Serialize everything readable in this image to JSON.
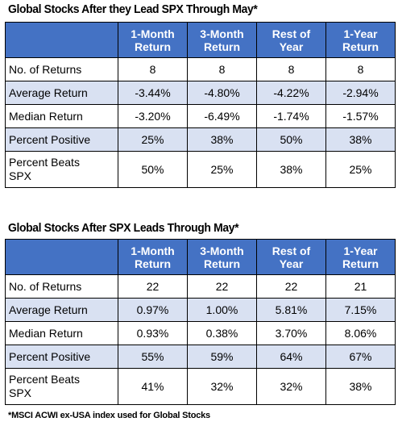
{
  "chart_data": [
    {
      "type": "table",
      "title": "Global Stocks After they Lead SPX Through May*",
      "columns": [
        "1-Month Return",
        "3-Month Return",
        "Rest of Year",
        "1-Year Return"
      ],
      "header_lines": [
        [
          "1-Month",
          "Return"
        ],
        [
          "3-Month",
          "Return"
        ],
        [
          "Rest of",
          "Year"
        ],
        [
          "1-Year",
          "Return"
        ]
      ],
      "rows": [
        {
          "label": "No. of Returns",
          "label_lines": [
            "No. of Returns"
          ],
          "values": [
            "8",
            "8",
            "8",
            "8"
          ]
        },
        {
          "label": "Average Return",
          "label_lines": [
            "Average Return"
          ],
          "values": [
            "-3.44%",
            "-4.80%",
            "-4.22%",
            "-2.94%"
          ]
        },
        {
          "label": "Median Return",
          "label_lines": [
            "Median Return"
          ],
          "values": [
            "-3.20%",
            "-6.49%",
            "-1.74%",
            "-1.57%"
          ]
        },
        {
          "label": "Percent Positive",
          "label_lines": [
            "Percent Positive"
          ],
          "values": [
            "25%",
            "38%",
            "50%",
            "38%"
          ]
        },
        {
          "label": "Percent Beats SPX",
          "label_lines": [
            "Percent Beats",
            "SPX"
          ],
          "values": [
            "50%",
            "25%",
            "38%",
            "25%"
          ]
        }
      ]
    },
    {
      "type": "table",
      "title": "Global Stocks After SPX Leads Through May*",
      "columns": [
        "1-Month Return",
        "3-Month Return",
        "Rest of Year",
        "1-Year Return"
      ],
      "header_lines": [
        [
          "1-Month",
          "Return"
        ],
        [
          "3-Month",
          "Return"
        ],
        [
          "Rest of",
          "Year"
        ],
        [
          "1-Year",
          "Return"
        ]
      ],
      "rows": [
        {
          "label": "No. of Returns",
          "label_lines": [
            "No. of Returns"
          ],
          "values": [
            "22",
            "22",
            "22",
            "21"
          ]
        },
        {
          "label": "Average Return",
          "label_lines": [
            "Average Return"
          ],
          "values": [
            "0.97%",
            "1.00%",
            "5.81%",
            "7.15%"
          ]
        },
        {
          "label": "Median Return",
          "label_lines": [
            "Median Return"
          ],
          "values": [
            "0.93%",
            "0.38%",
            "3.70%",
            "8.06%"
          ]
        },
        {
          "label": "Percent Positive",
          "label_lines": [
            "Percent Positive"
          ],
          "values": [
            "55%",
            "59%",
            "64%",
            "67%"
          ]
        },
        {
          "label": "Percent Beats SPX",
          "label_lines": [
            "Percent Beats",
            "SPX"
          ],
          "values": [
            "41%",
            "32%",
            "32%",
            "38%"
          ]
        }
      ]
    }
  ],
  "colors": {
    "header_bg": "#4472c4",
    "header_text": "#ffffff",
    "shaded_row": "#d9e1f2",
    "border": "#000000"
  },
  "footnote": "*MSCI ACWI ex-USA index used for Global Stocks"
}
